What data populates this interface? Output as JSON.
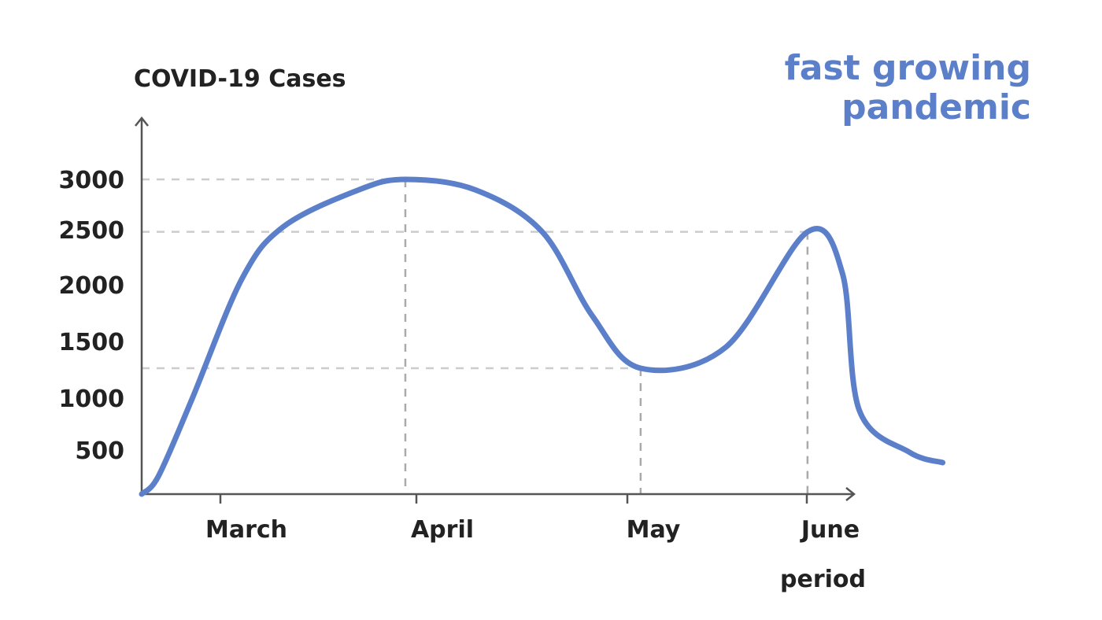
{
  "chart_data": {
    "type": "line",
    "title": "",
    "ylabel": "COVID-19 Cases",
    "xlabel": "period",
    "annotation": [
      "fast growing",
      "pandemic"
    ],
    "x_tick_labels": [
      "March",
      "April",
      "May",
      "June"
    ],
    "y_ticks": [
      500,
      1000,
      1500,
      2000,
      2500,
      3000
    ],
    "ylim": [
      0,
      3400
    ],
    "grid": "none",
    "guide_lines": [
      {
        "label_value": 3000,
        "at_month": 1.58
      },
      {
        "label_value": 2500,
        "at_month": 3.99
      },
      {
        "label_value": 1200,
        "at_month": 2.99
      }
    ],
    "series": [
      {
        "points": [
          [
            0.0,
            0
          ],
          [
            0.1,
            170
          ],
          [
            0.3,
            900
          ],
          [
            0.6,
            2050
          ],
          [
            0.85,
            2550
          ],
          [
            1.3,
            2900
          ],
          [
            1.58,
            3000
          ],
          [
            2.0,
            2900
          ],
          [
            2.4,
            2500
          ],
          [
            2.7,
            1700
          ],
          [
            2.99,
            1200
          ],
          [
            3.5,
            1400
          ],
          [
            3.99,
            2500
          ],
          [
            4.2,
            2100
          ],
          [
            4.3,
            800
          ],
          [
            4.6,
            400
          ],
          [
            4.8,
            300
          ]
        ]
      }
    ],
    "colors": {
      "line": "#5b7fc9",
      "axis": "#555555",
      "guide": "#cccccc",
      "guide_vertical": "#aaaaaa",
      "text": "#222222",
      "annotation": "#5b7fc9"
    }
  }
}
